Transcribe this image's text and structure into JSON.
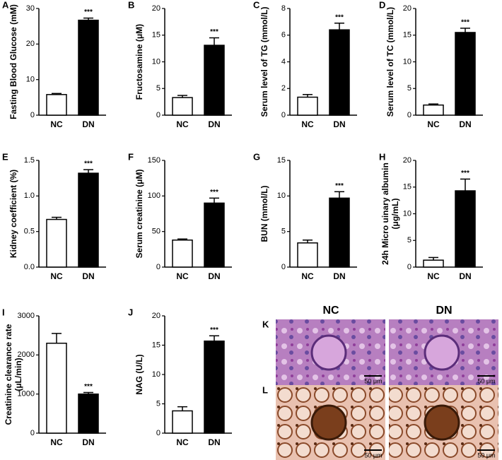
{
  "chart_data": [
    {
      "type": "bar",
      "panel": "A",
      "ylabel": [
        "Fasting Blood Glucose (mM)"
      ],
      "categories": [
        "NC",
        "DN"
      ],
      "values": [
        5.8,
        26.7
      ],
      "errors": [
        0.3,
        0.6
      ],
      "colors": [
        "#ffffff",
        "#000000"
      ],
      "significance": [
        null,
        "***"
      ],
      "ylim": [
        0,
        30
      ],
      "yticks": [
        0,
        10,
        20,
        30
      ]
    },
    {
      "type": "bar",
      "panel": "B",
      "ylabel": [
        "Fructosamine (μM)"
      ],
      "categories": [
        "NC",
        "DN"
      ],
      "values": [
        3.3,
        13.1
      ],
      "errors": [
        0.4,
        1.4
      ],
      "colors": [
        "#ffffff",
        "#000000"
      ],
      "significance": [
        null,
        "***"
      ],
      "ylim": [
        0,
        20
      ],
      "yticks": [
        0,
        5,
        10,
        15,
        20
      ]
    },
    {
      "type": "bar",
      "panel": "C",
      "ylabel": [
        "Serum level of TG (mmol/L)"
      ],
      "categories": [
        "NC",
        "DN"
      ],
      "values": [
        1.35,
        6.4
      ],
      "errors": [
        0.2,
        0.5
      ],
      "colors": [
        "#ffffff",
        "#000000"
      ],
      "significance": [
        null,
        "***"
      ],
      "ylim": [
        0,
        8
      ],
      "yticks": [
        0,
        2,
        4,
        6,
        8
      ]
    },
    {
      "type": "bar",
      "panel": "D",
      "ylabel": [
        "Serum level of TC (mmol/L)"
      ],
      "categories": [
        "NC",
        "DN"
      ],
      "values": [
        1.9,
        15.5
      ],
      "errors": [
        0.2,
        0.8
      ],
      "colors": [
        "#ffffff",
        "#000000"
      ],
      "significance": [
        null,
        "***"
      ],
      "ylim": [
        0,
        20
      ],
      "yticks": [
        0,
        5,
        10,
        15,
        20
      ]
    },
    {
      "type": "bar",
      "panel": "E",
      "ylabel": [
        "Kidney coefficient (%)"
      ],
      "categories": [
        "NC",
        "DN"
      ],
      "values": [
        0.67,
        1.32
      ],
      "errors": [
        0.03,
        0.05
      ],
      "colors": [
        "#ffffff",
        "#000000"
      ],
      "significance": [
        null,
        "***"
      ],
      "ylim": [
        0,
        1.5
      ],
      "yticks": [
        {
          "value": 0,
          "label": "0.0"
        },
        0.5,
        {
          "value": 1,
          "label": "1.0"
        },
        1.5
      ]
    },
    {
      "type": "bar",
      "panel": "F",
      "ylabel": [
        "Serum creatinine (μM)"
      ],
      "categories": [
        "NC",
        "DN"
      ],
      "values": [
        38,
        90
      ],
      "errors": [
        1.5,
        7
      ],
      "colors": [
        "#ffffff",
        "#000000"
      ],
      "significance": [
        null,
        "***"
      ],
      "ylim": [
        0,
        150
      ],
      "yticks": [
        0,
        50,
        100,
        150
      ]
    },
    {
      "type": "bar",
      "panel": "G",
      "ylabel": [
        "BUN (mmol/L)"
      ],
      "categories": [
        "NC",
        "DN"
      ],
      "values": [
        3.4,
        9.7
      ],
      "errors": [
        0.4,
        0.9
      ],
      "colors": [
        "#ffffff",
        "#000000"
      ],
      "significance": [
        null,
        "***"
      ],
      "ylim": [
        0,
        15
      ],
      "yticks": [
        0,
        5,
        10,
        15
      ]
    },
    {
      "type": "bar",
      "panel": "H",
      "ylabel": [
        "24h Micro uinary albumin",
        "(μg/mL)"
      ],
      "categories": [
        "NC",
        "DN"
      ],
      "values": [
        1.3,
        14.3
      ],
      "errors": [
        0.5,
        2.2
      ],
      "colors": [
        "#ffffff",
        "#000000"
      ],
      "significance": [
        null,
        "***"
      ],
      "ylim": [
        0,
        20
      ],
      "yticks": [
        0,
        5,
        10,
        15,
        20
      ]
    },
    {
      "type": "bar",
      "panel": "I",
      "ylabel": [
        "Creatinine clearance rate",
        "(μL/min)"
      ],
      "categories": [
        "NC",
        "DN"
      ],
      "values": [
        2300,
        1000
      ],
      "errors": [
        250,
        40
      ],
      "colors": [
        "#ffffff",
        "#000000"
      ],
      "significance": [
        null,
        "***"
      ],
      "ylim": [
        0,
        3000
      ],
      "yticks": [
        0,
        1000,
        2000,
        3000
      ]
    },
    {
      "type": "bar",
      "panel": "J",
      "ylabel": [
        "NAG (U/L)"
      ],
      "categories": [
        "NC",
        "DN"
      ],
      "values": [
        3.8,
        15.7
      ],
      "errors": [
        0.7,
        0.9
      ],
      "colors": [
        "#ffffff",
        "#000000"
      ],
      "significance": [
        null,
        "***"
      ],
      "ylim": [
        0,
        20
      ],
      "yticks": [
        0,
        5,
        10,
        15,
        20
      ]
    }
  ],
  "histology": {
    "columns": [
      "NC",
      "DN"
    ],
    "rows": [
      {
        "panel": "K",
        "scale": [
          "50 μm",
          "50 μm"
        ]
      },
      {
        "panel": "L",
        "scale": [
          "50 μm",
          "50 μm"
        ]
      }
    ]
  }
}
